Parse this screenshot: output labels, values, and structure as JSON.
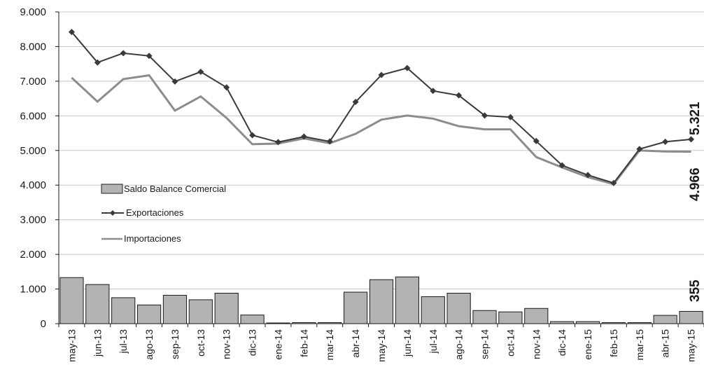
{
  "chart_data": {
    "type": "bar+line",
    "categories": [
      "may-13",
      "jun-13",
      "jul-13",
      "ago-13",
      "sep-13",
      "oct-13",
      "nov-13",
      "dic-13",
      "ene-14",
      "feb-14",
      "mar-14",
      "abr-14",
      "may-14",
      "jun-14",
      "jul-14",
      "ago-14",
      "sep-14",
      "oct-14",
      "nov-14",
      "dic-14",
      "ene-15",
      "feb-15",
      "mar-15",
      "abr-15",
      "may-15"
    ],
    "ylim": [
      0,
      9000
    ],
    "y_ticks": [
      0,
      1000,
      2000,
      3000,
      4000,
      5000,
      6000,
      7000,
      8000,
      9000
    ],
    "y_tick_labels": [
      "0",
      "1.000",
      "2.000",
      "3.000",
      "4.000",
      "5.000",
      "6.000",
      "7.000",
      "8.000",
      "9.000"
    ],
    "grid": true,
    "legend_placement": "left",
    "series": [
      {
        "name": "Saldo Balance Comercial",
        "type": "bar",
        "color": "#b3b3b3",
        "values": [
          1330,
          1130,
          750,
          540,
          820,
          690,
          880,
          250,
          20,
          30,
          30,
          910,
          1270,
          1350,
          780,
          880,
          380,
          340,
          440,
          60,
          60,
          30,
          30,
          240,
          355
        ]
      },
      {
        "name": "Exportaciones",
        "type": "line",
        "marker": "diamond",
        "color": "#3a3a3a",
        "values": [
          8420,
          7540,
          7810,
          7730,
          6990,
          7270,
          6820,
          5440,
          5240,
          5400,
          5260,
          6400,
          7180,
          7380,
          6720,
          6590,
          6010,
          5960,
          5270,
          4570,
          4290,
          4060,
          5040,
          5250,
          5321
        ]
      },
      {
        "name": "Importaciones",
        "type": "line",
        "color": "#8c8c8c",
        "values": [
          7100,
          6410,
          7060,
          7170,
          6150,
          6560,
          5940,
          5180,
          5200,
          5350,
          5210,
          5480,
          5890,
          6010,
          5920,
          5700,
          5610,
          5610,
          4810,
          4510,
          4230,
          4030,
          5000,
          4970,
          4966
        ]
      }
    ],
    "end_labels": {
      "exportaciones": "5.321",
      "importaciones": "4.966",
      "saldo": "355"
    }
  }
}
